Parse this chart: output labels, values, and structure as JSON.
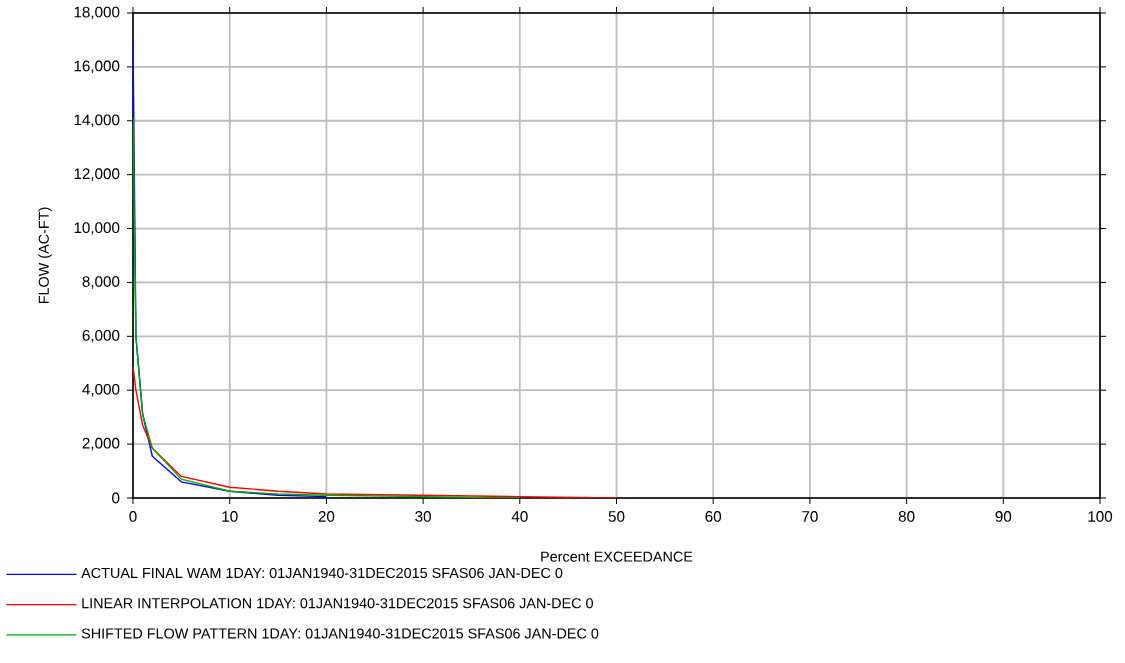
{
  "chart_data": {
    "type": "line",
    "xlabel": "Percent EXCEEDANCE",
    "ylabel": "FLOW (AC-FT)",
    "xlim": [
      0,
      100
    ],
    "ylim": [
      0,
      18000
    ],
    "xticks": [
      0,
      10,
      20,
      30,
      40,
      50,
      60,
      70,
      80,
      90,
      100
    ],
    "yticks": [
      0,
      {
        "value": 2000,
        "label": "2,000"
      },
      {
        "value": 4000,
        "label": "4,000"
      },
      {
        "value": 6000,
        "label": "6,000"
      },
      {
        "value": 8000,
        "label": "8,000"
      },
      {
        "value": 10000,
        "label": "10,000"
      },
      {
        "value": 12000,
        "label": "12,000"
      },
      {
        "value": 14000,
        "label": "14,000"
      },
      {
        "value": 16000,
        "label": "16,000"
      },
      {
        "value": 18000,
        "label": "18,000"
      }
    ],
    "grid": true,
    "legend": "bottom",
    "line_style": "solid",
    "series": [
      {
        "name": "ACTUAL FINAL WAM 1DAY: 01JAN1940-31DEC2015 SFAS06 JAN-DEC  0",
        "color": "#0000ff",
        "x": [
          0,
          0.3,
          1,
          2,
          5,
          10,
          15,
          20
        ],
        "values": [
          17000,
          6000,
          3100,
          1550,
          600,
          250,
          100,
          50
        ]
      },
      {
        "name": "LINEAR INTERPOLATION 1DAY: 01JAN1940-31DEC2015 SFAS06 JAN-DEC  0",
        "color": "#ff0000",
        "x": [
          0,
          0.3,
          1,
          2,
          5,
          10,
          15,
          20,
          30,
          40,
          50
        ],
        "values": [
          4900,
          4000,
          2700,
          1850,
          800,
          400,
          250,
          150,
          100,
          50,
          0
        ]
      },
      {
        "name": "SHIFTED FLOW PATTERN 1DAY: 01JAN1940-31DEC2015 SFAS06 JAN-DEC  0",
        "color": "#00aa00",
        "x": [
          0,
          0.3,
          1,
          2,
          5,
          10,
          15,
          20,
          30,
          40
        ],
        "values": [
          14100,
          6000,
          3100,
          1850,
          700,
          250,
          150,
          100,
          50,
          0
        ]
      }
    ]
  }
}
